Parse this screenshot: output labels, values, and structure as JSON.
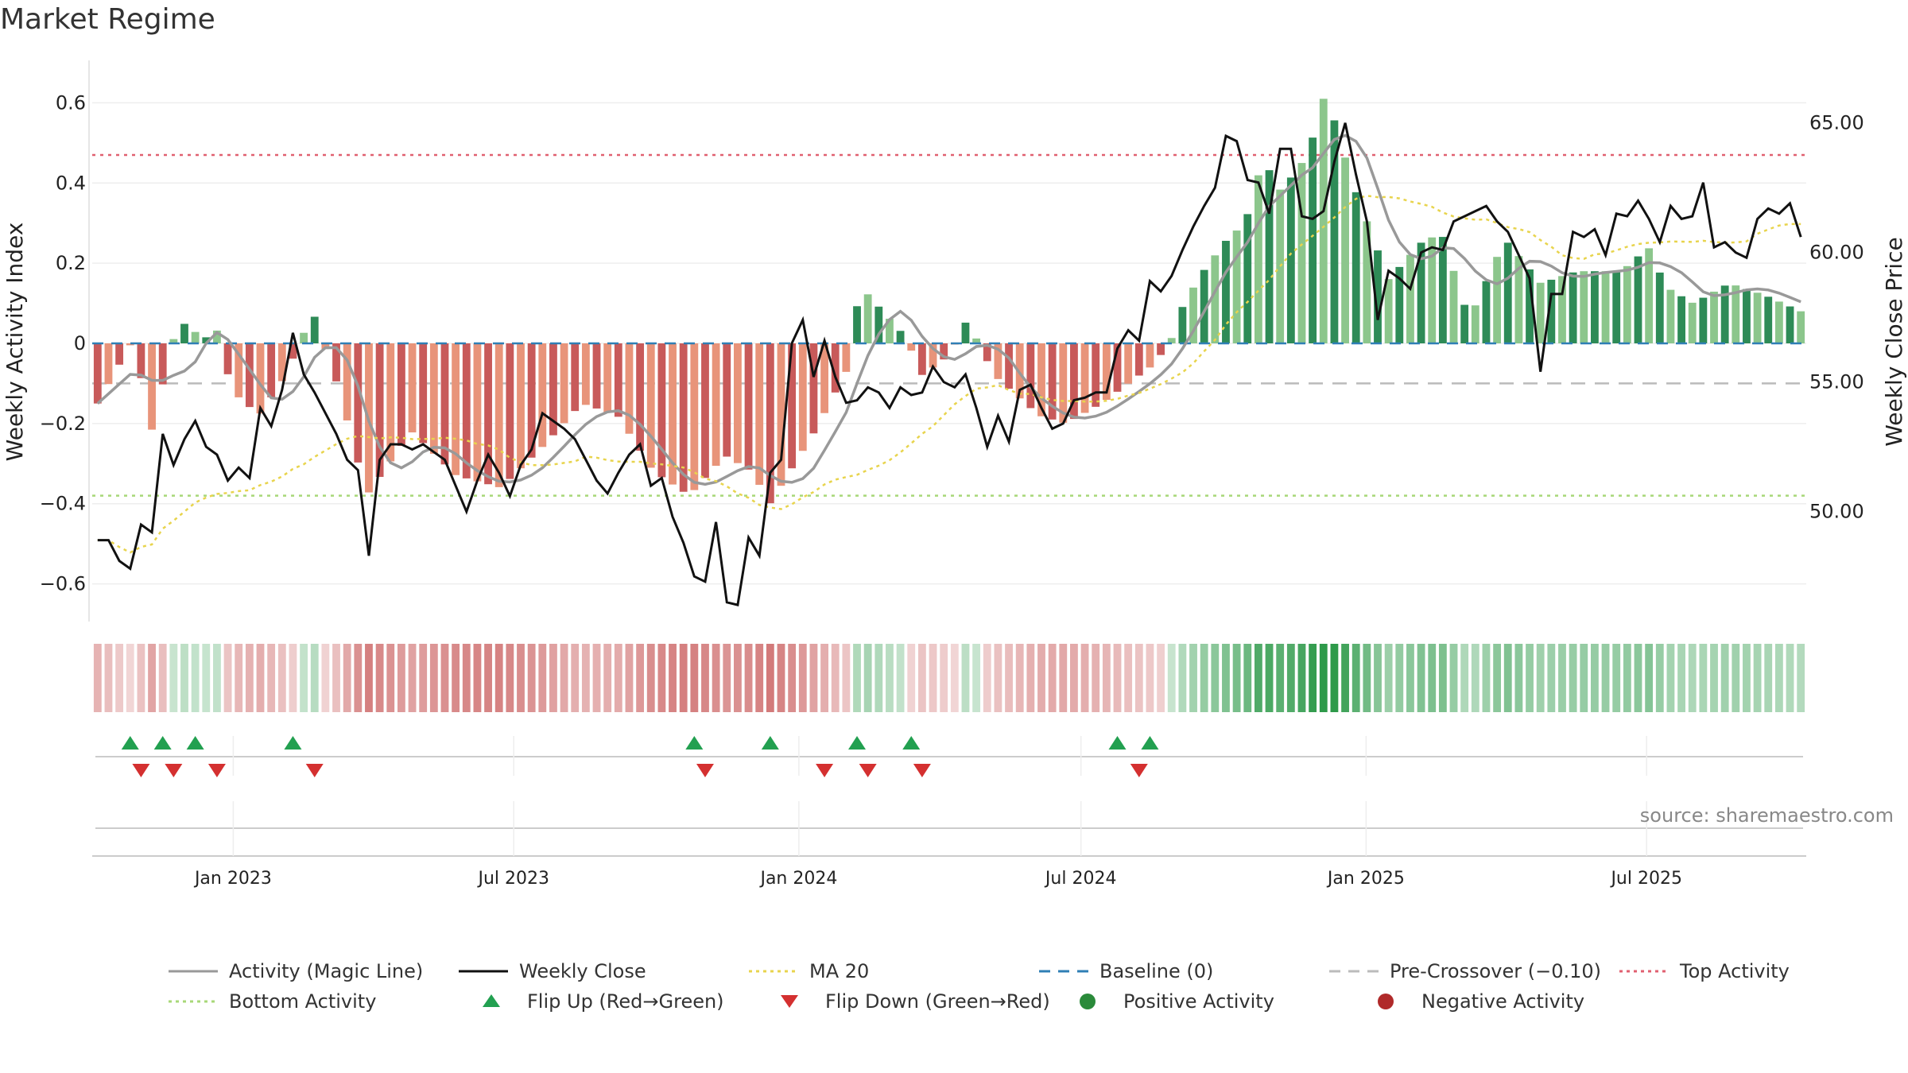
{
  "title": "Market Regime",
  "source": "source: sharemaestro.com",
  "colors": {
    "neg_strong": "#c85a5a",
    "neg_light": "#e8947a",
    "pos_strong": "#2e8b57",
    "pos_light": "#8cc68c",
    "magic_line": "#999999",
    "close": "#111111",
    "ma20": "#e8d44d",
    "baseline": "#2f7fb5",
    "pre_crossover": "#bbbbbb",
    "top_activity": "#e06070",
    "bottom_activity": "#a8d878",
    "flip_up": "#22a050",
    "flip_down": "#d43030",
    "positive_dot": "#2a8a3a",
    "negative_dot": "#b02a2a"
  },
  "legend": [
    {
      "key": "magic_line",
      "label": "Activity (Magic Line)",
      "style": "solid"
    },
    {
      "key": "close",
      "label": "Weekly Close",
      "style": "solid"
    },
    {
      "key": "ma20",
      "label": "MA 20",
      "style": "dotted"
    },
    {
      "key": "baseline",
      "label": "Baseline (0)",
      "style": "dashed"
    },
    {
      "key": "pre_crossover",
      "label": "Pre-Crossover (−0.10)",
      "style": "dashed"
    },
    {
      "key": "top_activity",
      "label": "Top Activity",
      "style": "dotted"
    },
    {
      "key": "bottom_activity",
      "label": "Bottom Activity",
      "style": "dotted"
    },
    {
      "key": "flip_up",
      "label": "Flip Up (Red→Green)",
      "style": "triangle-up"
    },
    {
      "key": "flip_down",
      "label": "Flip Down (Green→Red)",
      "style": "triangle-down"
    },
    {
      "key": "positive_dot",
      "label": "Positive Activity",
      "style": "dot"
    },
    {
      "key": "negative_dot",
      "label": "Negative Activity",
      "style": "dot"
    }
  ],
  "chart_data": {
    "type": "bar",
    "title": "Market Regime",
    "ylabel": "Weekly Activity Index",
    "y2label": "Weekly Close Price",
    "ylim": [
      -0.69,
      0.69
    ],
    "y2lim": [
      45.82,
      67.17
    ],
    "yticks": [
      0.6,
      0.4,
      0.2,
      0,
      -0.2,
      -0.4,
      -0.6
    ],
    "ytick_labels": [
      "0.6",
      "0.4",
      "0.2",
      "0",
      "−0.2",
      "−0.4",
      "−0.6"
    ],
    "y2ticks": [
      65,
      60,
      55,
      50
    ],
    "y2tick_labels": [
      "65.00",
      "60.00",
      "55.00",
      "50.00"
    ],
    "x_start": "2022-10-02",
    "week_count": 158,
    "xticks": [
      "2023-01-01",
      "2023-07-01",
      "2024-01-01",
      "2024-07-01",
      "2025-01-01",
      "2025-07-01"
    ],
    "xtick_labels": [
      "Jan 2023",
      "Jul 2023",
      "Jan 2024",
      "Jul 2024",
      "Jan 2025",
      "Jul 2025"
    ],
    "reference_lines": {
      "baseline": 0,
      "pre_crossover": -0.1,
      "top_activity": 0.47,
      "bottom_activity": -0.38
    },
    "activity_anchors": [
      [
        0,
        -0.15
      ],
      [
        4,
        0.01
      ],
      [
        6,
        -0.22
      ],
      [
        9,
        0.06
      ],
      [
        12,
        0.01
      ],
      [
        13,
        0.06
      ],
      [
        15,
        -0.12
      ],
      [
        18,
        -0.18
      ],
      [
        21,
        -0.08
      ],
      [
        24,
        0.08
      ],
      [
        27,
        -0.12
      ],
      [
        30,
        -0.38
      ],
      [
        35,
        -0.22
      ],
      [
        40,
        -0.33
      ],
      [
        45,
        -0.36
      ],
      [
        50,
        -0.25
      ],
      [
        54,
        -0.15
      ],
      [
        58,
        -0.18
      ],
      [
        62,
        -0.32
      ],
      [
        66,
        -0.38
      ],
      [
        70,
        -0.28
      ],
      [
        73,
        -0.32
      ],
      [
        75,
        -0.4
      ],
      [
        80,
        -0.22
      ],
      [
        84,
        -0.05
      ],
      [
        85,
        0.15
      ],
      [
        86,
        0.12
      ],
      [
        90,
        0.02
      ],
      [
        92,
        -0.08
      ],
      [
        95,
        -0.03
      ],
      [
        97,
        0.06
      ],
      [
        100,
        -0.08
      ],
      [
        105,
        -0.18
      ],
      [
        108,
        -0.2
      ],
      [
        112,
        -0.15
      ],
      [
        115,
        -0.1
      ],
      [
        118,
        -0.05
      ],
      [
        120,
        0.02
      ],
      [
        121,
        0.09
      ],
      [
        123,
        0.17
      ],
      [
        126,
        0.26
      ],
      [
        128,
        0.3
      ],
      [
        130,
        0.46
      ],
      [
        132,
        0.38
      ],
      [
        135,
        0.47
      ],
      [
        137,
        0.63
      ],
      [
        140,
        0.4
      ],
      [
        144,
        0.16
      ],
      [
        148,
        0.26
      ],
      [
        150,
        0.27
      ],
      [
        153,
        0.06
      ],
      [
        157,
        0.26
      ],
      [
        161,
        0.15
      ],
      [
        165,
        0.18
      ],
      [
        170,
        0.18
      ],
      [
        173,
        0.24
      ],
      [
        175,
        0.14
      ],
      [
        178,
        0.1
      ],
      [
        182,
        0.15
      ],
      [
        186,
        0.12
      ],
      [
        190,
        0.08
      ]
    ],
    "close_anchors": [
      [
        0,
        48.9
      ],
      [
        1,
        48.9
      ],
      [
        2,
        48.1
      ],
      [
        3,
        47.8
      ],
      [
        4,
        49.5
      ],
      [
        5,
        49.2
      ],
      [
        6,
        53.0
      ],
      [
        7,
        51.8
      ],
      [
        8,
        52.8
      ],
      [
        9,
        53.5
      ],
      [
        10,
        52.5
      ],
      [
        11,
        52.2
      ],
      [
        12,
        51.2
      ],
      [
        13,
        51.7
      ],
      [
        14,
        51.3
      ],
      [
        15,
        54.0
      ],
      [
        16,
        53.3
      ],
      [
        17,
        54.7
      ],
      [
        18,
        56.9
      ],
      [
        19,
        55.3
      ],
      [
        20,
        54.6
      ],
      [
        21,
        53.8
      ],
      [
        22,
        53.0
      ],
      [
        23,
        52.0
      ],
      [
        24,
        51.6
      ],
      [
        25,
        48.3
      ],
      [
        26,
        52.0
      ],
      [
        27,
        52.6
      ],
      [
        28,
        52.6
      ],
      [
        29,
        52.4
      ],
      [
        30,
        52.6
      ],
      [
        31,
        52.3
      ],
      [
        32,
        52.0
      ],
      [
        33,
        51.0
      ],
      [
        34,
        50.0
      ],
      [
        35,
        51.2
      ],
      [
        36,
        52.2
      ],
      [
        37,
        51.5
      ],
      [
        38,
        50.6
      ],
      [
        39,
        51.8
      ],
      [
        40,
        52.4
      ],
      [
        41,
        53.8
      ],
      [
        42,
        53.5
      ],
      [
        43,
        53.2
      ],
      [
        44,
        52.8
      ],
      [
        45,
        52.0
      ],
      [
        46,
        51.2
      ],
      [
        47,
        50.7
      ],
      [
        48,
        51.5
      ],
      [
        49,
        52.2
      ],
      [
        50,
        52.6
      ],
      [
        51,
        51.0
      ],
      [
        52,
        51.3
      ],
      [
        53,
        49.8
      ],
      [
        54,
        48.8
      ],
      [
        55,
        47.5
      ],
      [
        56,
        47.3
      ],
      [
        57,
        49.6
      ],
      [
        58,
        46.5
      ],
      [
        59,
        46.4
      ],
      [
        60,
        49.0
      ],
      [
        61,
        48.3
      ],
      [
        62,
        51.5
      ],
      [
        63,
        52.0
      ],
      [
        64,
        56.5
      ],
      [
        65,
        57.4
      ],
      [
        66,
        55.2
      ],
      [
        67,
        56.6
      ],
      [
        68,
        55.2
      ],
      [
        69,
        54.2
      ],
      [
        70,
        54.3
      ],
      [
        71,
        54.8
      ],
      [
        72,
        54.6
      ],
      [
        73,
        54.0
      ],
      [
        74,
        54.8
      ],
      [
        75,
        54.5
      ],
      [
        76,
        54.6
      ],
      [
        77,
        55.6
      ],
      [
        78,
        55.0
      ],
      [
        79,
        54.8
      ],
      [
        80,
        55.3
      ],
      [
        81,
        54.0
      ],
      [
        82,
        52.5
      ],
      [
        83,
        53.7
      ],
      [
        84,
        52.7
      ],
      [
        85,
        54.7
      ],
      [
        86,
        54.9
      ],
      [
        87,
        54.0
      ],
      [
        88,
        53.2
      ],
      [
        89,
        53.4
      ],
      [
        90,
        54.3
      ],
      [
        91,
        54.4
      ],
      [
        92,
        54.6
      ],
      [
        93,
        54.6
      ],
      [
        94,
        56.3
      ],
      [
        95,
        57.0
      ],
      [
        96,
        56.6
      ],
      [
        97,
        58.9
      ],
      [
        98,
        58.5
      ],
      [
        99,
        59.1
      ],
      [
        100,
        60.1
      ],
      [
        101,
        61.0
      ],
      [
        102,
        61.8
      ],
      [
        103,
        62.5
      ],
      [
        104,
        64.5
      ],
      [
        105,
        64.3
      ],
      [
        106,
        62.8
      ],
      [
        107,
        62.7
      ],
      [
        108,
        61.5
      ],
      [
        109,
        64.0
      ],
      [
        110,
        64.0
      ],
      [
        111,
        61.4
      ],
      [
        112,
        61.3
      ],
      [
        113,
        61.6
      ],
      [
        114,
        63.5
      ],
      [
        115,
        65.0
      ],
      [
        116,
        63.0
      ],
      [
        117,
        61.2
      ],
      [
        118,
        57.4
      ],
      [
        119,
        59.3
      ],
      [
        120,
        59.0
      ],
      [
        121,
        58.6
      ],
      [
        122,
        60.0
      ],
      [
        123,
        60.2
      ],
      [
        124,
        60.1
      ],
      [
        125,
        61.2
      ],
      [
        126,
        61.4
      ],
      [
        127,
        61.6
      ],
      [
        128,
        61.8
      ],
      [
        129,
        61.2
      ],
      [
        130,
        60.8
      ],
      [
        131,
        59.9
      ],
      [
        132,
        59.0
      ],
      [
        133,
        55.4
      ],
      [
        134,
        58.4
      ],
      [
        135,
        58.4
      ],
      [
        136,
        60.8
      ],
      [
        137,
        60.6
      ],
      [
        138,
        60.9
      ],
      [
        139,
        59.9
      ],
      [
        140,
        61.5
      ],
      [
        141,
        61.4
      ],
      [
        142,
        62.0
      ],
      [
        143,
        61.3
      ],
      [
        144,
        60.4
      ],
      [
        145,
        61.8
      ],
      [
        146,
        61.3
      ],
      [
        147,
        61.4
      ],
      [
        148,
        62.7
      ],
      [
        149,
        60.2
      ],
      [
        150,
        60.4
      ],
      [
        151,
        60.0
      ],
      [
        152,
        59.8
      ],
      [
        153,
        61.3
      ],
      [
        154,
        61.7
      ],
      [
        155,
        61.5
      ],
      [
        156,
        61.9
      ],
      [
        157,
        60.6
      ]
    ],
    "flip_up_weeks": [
      3,
      6,
      9,
      18,
      55,
      62,
      70,
      75,
      94,
      97
    ],
    "flip_down_weeks": [
      4,
      7,
      11,
      20,
      56,
      67,
      71,
      76,
      96
    ]
  }
}
